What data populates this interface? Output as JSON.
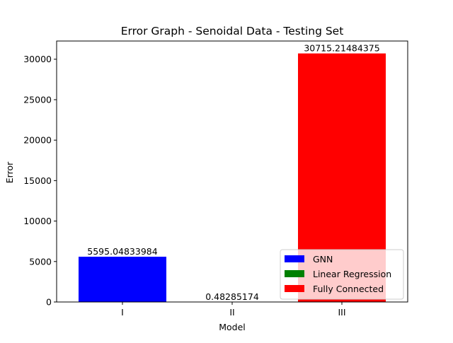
{
  "chart_data": {
    "type": "bar",
    "title": "Error Graph - Senoidal Data - Testing Set",
    "xlabel": "Model",
    "ylabel": "Error",
    "categories": [
      "I",
      "II",
      "III"
    ],
    "series": [
      {
        "name": "GNN",
        "category": "I",
        "value": 5595.04833984,
        "label": "5595.04833984",
        "color": "#0000ff"
      },
      {
        "name": "Linear Regression",
        "category": "II",
        "value": 0.48285174,
        "label": "0.48285174",
        "color": "#008000"
      },
      {
        "name": "Fully Connected",
        "category": "III",
        "value": 30715.21484375,
        "label": "30715.21484375",
        "color": "#ff0000"
      }
    ],
    "ylim": [
      0,
      32250
    ],
    "yticks": [
      0,
      5000,
      10000,
      15000,
      20000,
      25000,
      30000
    ],
    "ytick_labels": [
      "0",
      "5000",
      "10000",
      "15000",
      "20000",
      "25000",
      "30000"
    ],
    "grid": false,
    "legend_position": "lower-right"
  }
}
